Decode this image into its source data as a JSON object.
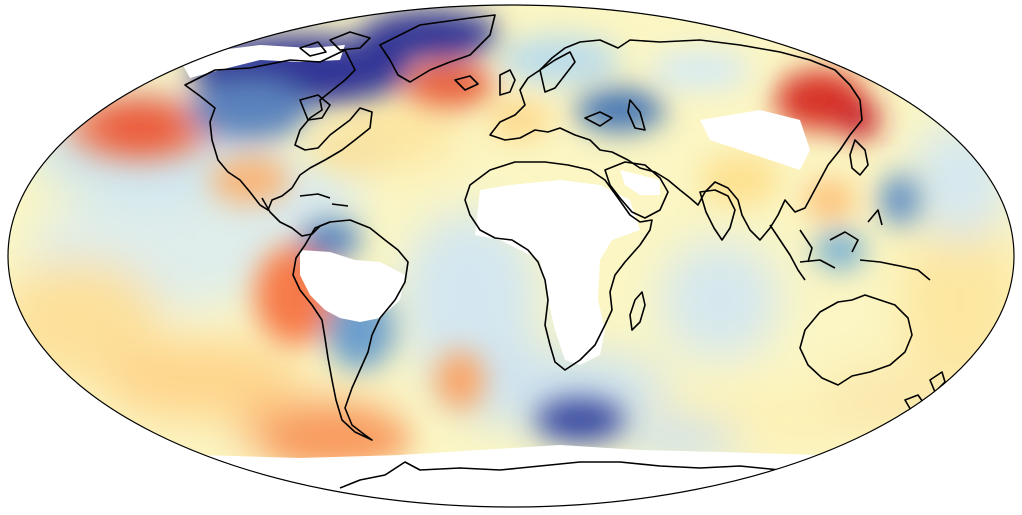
{
  "map": {
    "projection": "mollweide",
    "colormap": "RdYlBu_r",
    "missing_data_color": "#ffffff",
    "coastline_color": "#000000",
    "colors": {
      "deep_blue": "#313695",
      "blue": "#4575b4",
      "mid_blue": "#74add1",
      "light_blue": "#abd9e9",
      "pale_blue": "#e0f3f8",
      "pale_yellow": "#ffffbf",
      "light_orange": "#fee090",
      "orange": "#fdae61",
      "red_orange": "#f46d43",
      "red": "#d73027",
      "dark_red": "#a50026"
    }
  }
}
